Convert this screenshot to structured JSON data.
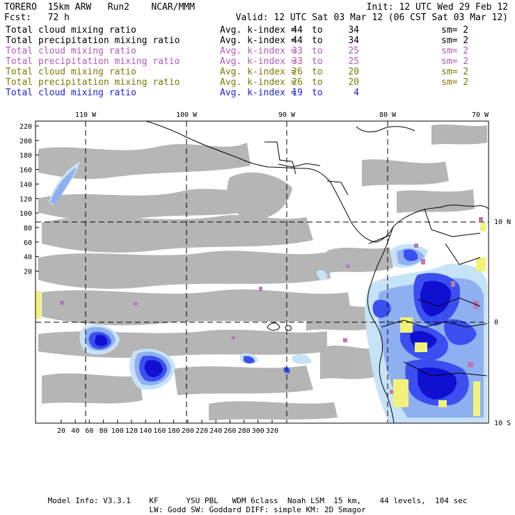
{
  "header": {
    "line1_left": "TORERO  15km ARW   Run2    NCAR/MMM",
    "line1_right": "Init: 12 UTC Wed 29 Feb 12",
    "line2_left": "Fcst:   72 h",
    "line2_right": "Valid: 12 UTC Sat 03 Mar 12 (06 CST Sat 03 Mar 12)"
  },
  "legend": [
    {
      "field": "Total cloud mixing ratio",
      "avg": "Avg. k-index =",
      "hi": "44",
      "to": "to",
      "lo": "34",
      "sm": "sm= 2",
      "color": "#000000"
    },
    {
      "field": "Total precipitation mixing ratio",
      "avg": "Avg. k-index =",
      "hi": "44",
      "to": "to",
      "lo": "34",
      "sm": "sm= 2",
      "color": "#000000"
    },
    {
      "field": "Total cloud mixing ratio",
      "avg": "Avg. k-index =",
      "hi": "33",
      "to": "to",
      "lo": "25",
      "sm": "sm= 2",
      "color": "#b05ab8"
    },
    {
      "field": "Total precipitation mixing ratio",
      "avg": "Avg. k-index =",
      "hi": "33",
      "to": "to",
      "lo": "25",
      "sm": "sm= 2",
      "color": "#b05ab8"
    },
    {
      "field": "Total cloud mixing ratio",
      "avg": "Avg. k-index =",
      "hi": "26",
      "to": "to",
      "lo": "20",
      "sm": "sm= 2",
      "color": "#7a7a00"
    },
    {
      "field": "Total precipitation mixing ratio",
      "avg": "Avg. k-index =",
      "hi": "26",
      "to": "to",
      "lo": "20",
      "sm": "sm= 2",
      "color": "#7a7a00"
    },
    {
      "field": "Total cloud mixing ratio",
      "avg": "Avg. k-index =",
      "hi": "19",
      "to": "to",
      "lo": "4",
      "sm": "",
      "color": "#1c1ce0"
    }
  ],
  "map": {
    "top_labels": [
      "110 W",
      "100 W",
      "90 W",
      "80 W",
      "70 W"
    ],
    "right_labels": [
      "10 N",
      "0",
      "10 S"
    ],
    "y_ticks": [
      "220",
      "200",
      "180",
      "160",
      "140",
      "120",
      "100",
      "80",
      "60",
      "40",
      "20"
    ],
    "x_ticks": [
      "20",
      "40",
      "60",
      "80",
      "100",
      "120",
      "140",
      "160",
      "180",
      "200",
      "220",
      "240",
      "260",
      "280",
      "300",
      "320"
    ],
    "colors": {
      "gray_cloud": "#a9a9a9",
      "light_blue": "#c6e2f7",
      "mid_blue": "#8fb0f0",
      "blue": "#3b4ff0",
      "dark_blue": "#1010d0",
      "purple": "#b87ab8",
      "yellow": "#f2f27a"
    }
  },
  "footer": {
    "line1": "Model Info: V3.3.1    KF      YSU PBL   WDM 6class  Noah LSM  15 km,    44 levels,  104 sec",
    "line2": "LW: Godd SW: Goddard DIFF: simple KM: 2D Smagor"
  }
}
